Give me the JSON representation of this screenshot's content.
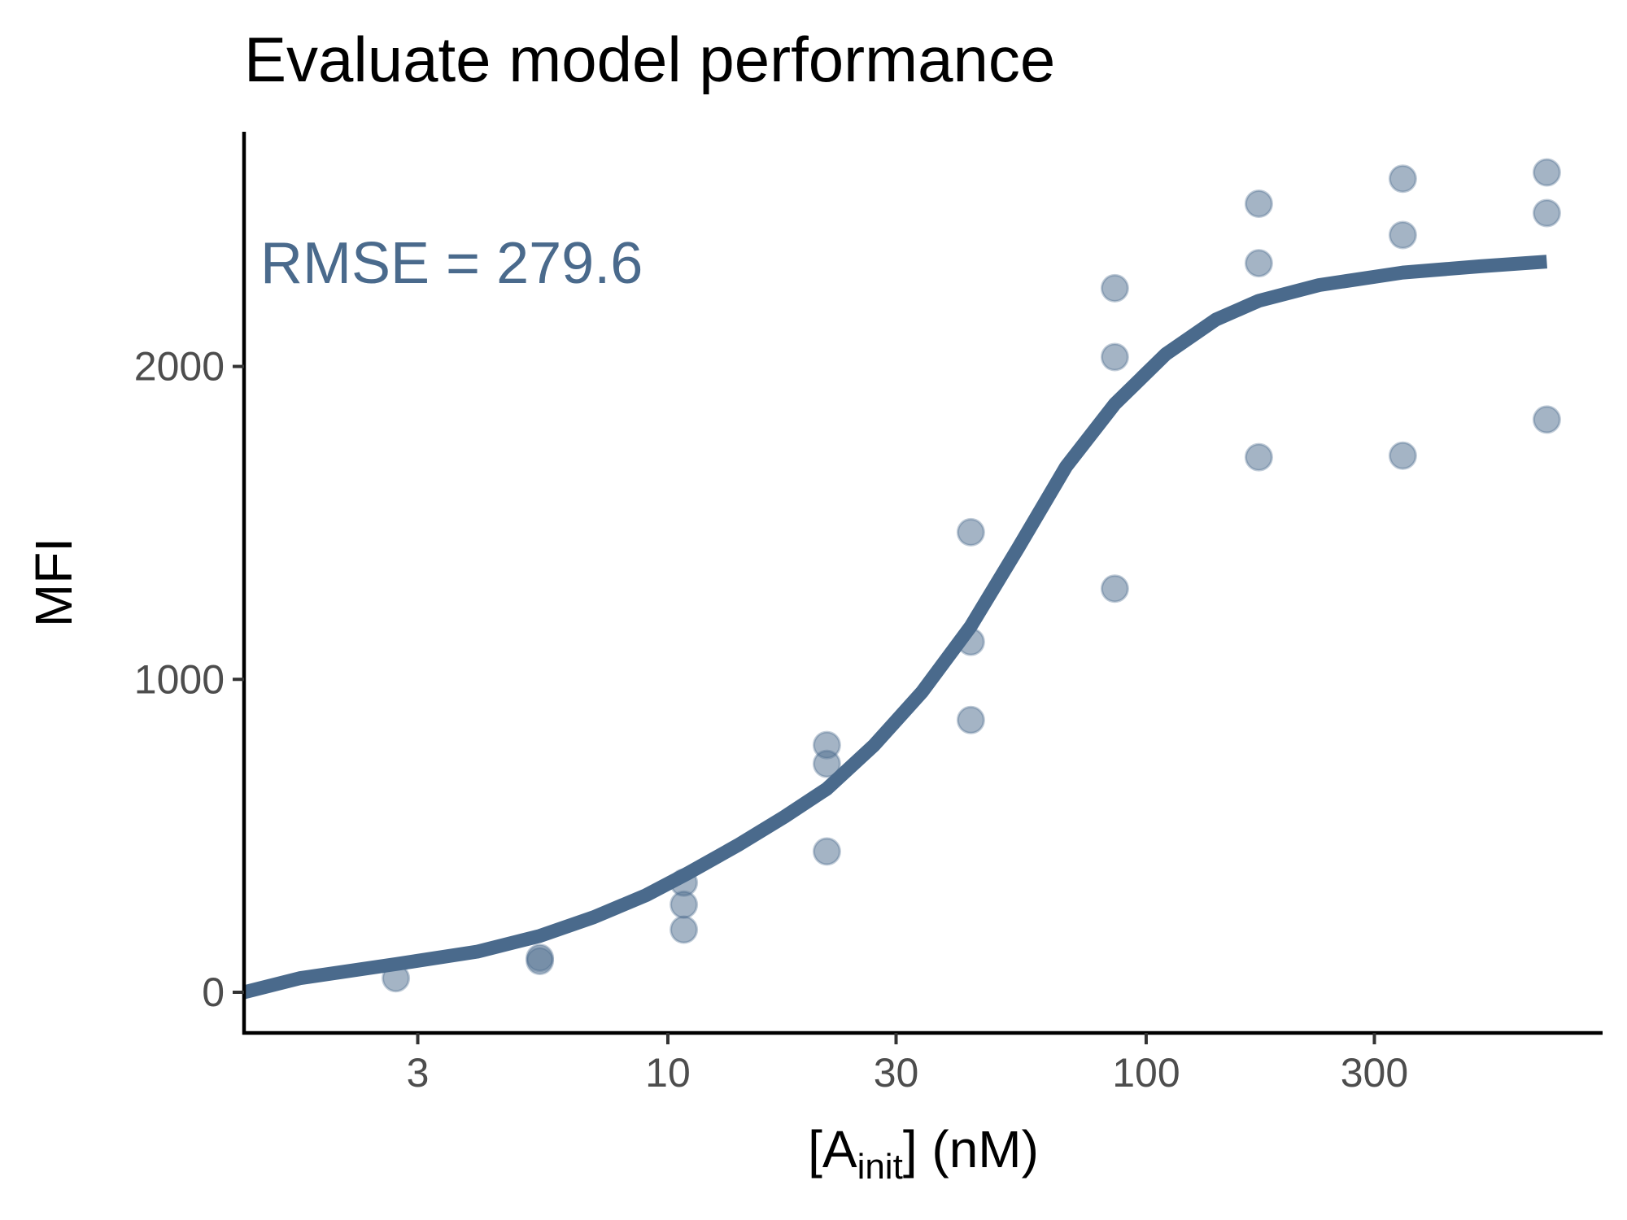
{
  "chart_data": {
    "type": "scatter",
    "title": "Evaluate model performance",
    "xlabel": {
      "main": "[A",
      "sub": "init",
      "suffix": "] (nM)"
    },
    "ylabel": "MFI",
    "x_scale": "log10",
    "xlim": [
      1.3,
      900
    ],
    "ylim": [
      -130,
      2750
    ],
    "x_ticks": [
      {
        "value": 3,
        "label": "3"
      },
      {
        "value": 10,
        "label": "10"
      },
      {
        "value": 30,
        "label": "30"
      },
      {
        "value": 100,
        "label": "100"
      },
      {
        "value": 300,
        "label": "300"
      }
    ],
    "y_ticks": [
      {
        "value": 0,
        "label": "0"
      },
      {
        "value": 1000,
        "label": "1000"
      },
      {
        "value": 2000,
        "label": "2000"
      }
    ],
    "annotation": {
      "text": "RMSE = 279.6"
    },
    "grid": false,
    "legend": "none",
    "series": [
      {
        "kind": "points",
        "color": "#4a6a8c",
        "points": [
          {
            "x": 2.7,
            "y": 45
          },
          {
            "x": 5.4,
            "y": 100
          },
          {
            "x": 5.4,
            "y": 110
          },
          {
            "x": 10.8,
            "y": 200
          },
          {
            "x": 10.8,
            "y": 280
          },
          {
            "x": 10.8,
            "y": 350
          },
          {
            "x": 21.5,
            "y": 450
          },
          {
            "x": 21.5,
            "y": 730
          },
          {
            "x": 21.5,
            "y": 790
          },
          {
            "x": 43,
            "y": 870
          },
          {
            "x": 43,
            "y": 1120
          },
          {
            "x": 43,
            "y": 1470
          },
          {
            "x": 86,
            "y": 1290
          },
          {
            "x": 86,
            "y": 2030
          },
          {
            "x": 86,
            "y": 2250
          },
          {
            "x": 172,
            "y": 1710
          },
          {
            "x": 172,
            "y": 2330
          },
          {
            "x": 172,
            "y": 2520
          },
          {
            "x": 344,
            "y": 1715
          },
          {
            "x": 344,
            "y": 2420
          },
          {
            "x": 344,
            "y": 2600
          },
          {
            "x": 688,
            "y": 1830
          },
          {
            "x": 688,
            "y": 2490
          },
          {
            "x": 688,
            "y": 2620
          }
        ]
      },
      {
        "kind": "line",
        "color": "#4a6a8c",
        "points": [
          {
            "x": 1.3,
            "y": 0
          },
          {
            "x": 1.7,
            "y": 45
          },
          {
            "x": 2.7,
            "y": 90
          },
          {
            "x": 4.0,
            "y": 130
          },
          {
            "x": 5.4,
            "y": 180
          },
          {
            "x": 7.0,
            "y": 240
          },
          {
            "x": 9.0,
            "y": 310
          },
          {
            "x": 11.0,
            "y": 380
          },
          {
            "x": 14.0,
            "y": 470
          },
          {
            "x": 17.5,
            "y": 560
          },
          {
            "x": 21.5,
            "y": 650
          },
          {
            "x": 27.0,
            "y": 790
          },
          {
            "x": 34.0,
            "y": 960
          },
          {
            "x": 43.0,
            "y": 1170
          },
          {
            "x": 54.0,
            "y": 1420
          },
          {
            "x": 68.0,
            "y": 1680
          },
          {
            "x": 86.0,
            "y": 1880
          },
          {
            "x": 110.0,
            "y": 2040
          },
          {
            "x": 140.0,
            "y": 2150
          },
          {
            "x": 172.0,
            "y": 2210
          },
          {
            "x": 230.0,
            "y": 2260
          },
          {
            "x": 344.0,
            "y": 2300
          },
          {
            "x": 500.0,
            "y": 2320
          },
          {
            "x": 688.0,
            "y": 2335
          }
        ]
      }
    ]
  }
}
